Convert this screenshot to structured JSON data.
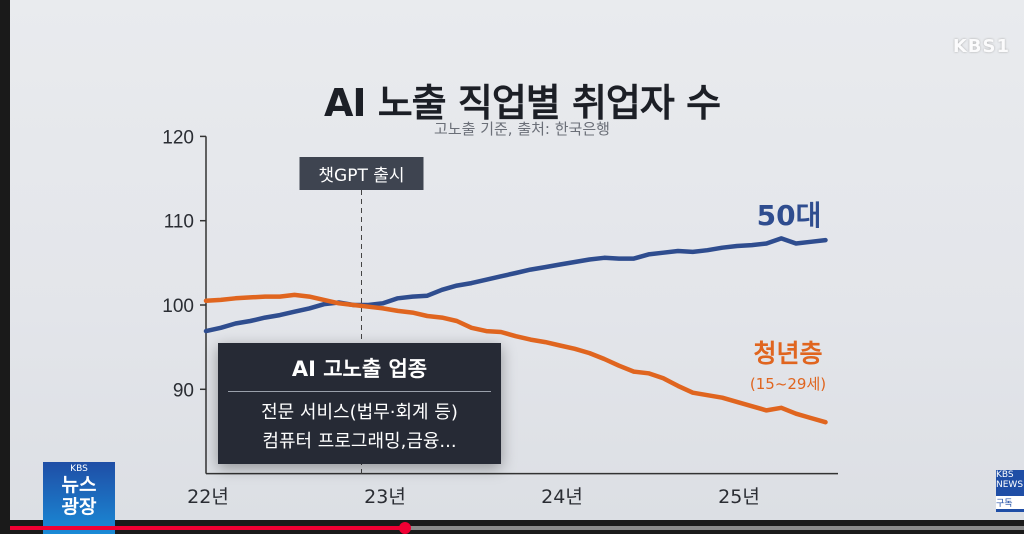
{
  "video": {
    "channel_logo": "KBS1",
    "program_badge": {
      "network": "KBS",
      "line1": "뉴스",
      "line2": "광장"
    },
    "subscribe_badge": {
      "network": "KBS NEWS",
      "label": "구독"
    },
    "progress_percent": 39
  },
  "callout": {
    "heading": "AI 고노출 업종",
    "lines": [
      "전문 서비스(법무·회계 등)",
      "컴퓨터 프로그래밍,금융..."
    ]
  },
  "chart_data": {
    "type": "line",
    "title": "AI 노출 직업별 취업자 수",
    "subtitle": "고노출 기준, 출처: 한국은행",
    "xlabel": "",
    "ylabel": "",
    "ylim": [
      80,
      120
    ],
    "yticks": [
      90,
      100,
      110,
      120
    ],
    "xtick_labels": [
      {
        "label": "22년",
        "x": "2022-01"
      },
      {
        "label": "23년",
        "x": "2023-01"
      },
      {
        "label": "24년",
        "x": "2024-01"
      },
      {
        "label": "25년",
        "x": "2025-01"
      }
    ],
    "grid": false,
    "annotation": {
      "label": "챗GPT 출시",
      "x": "2022-11",
      "style": "dashed vertical line"
    },
    "x_start": "2022-01",
    "x_frequency": "monthly",
    "series": [
      {
        "name": "50대",
        "sublabel": "",
        "color": "#2f4d8f",
        "values": [
          96.9,
          97.3,
          97.8,
          98.1,
          98.5,
          98.8,
          99.2,
          99.6,
          100.1,
          100.3,
          100.0,
          100.0,
          100.2,
          100.8,
          101.0,
          101.1,
          101.8,
          102.3,
          102.6,
          103.0,
          103.4,
          103.8,
          104.2,
          104.5,
          104.8,
          105.1,
          105.4,
          105.6,
          105.5,
          105.5,
          106.0,
          106.2,
          106.4,
          106.3,
          106.5,
          106.8,
          107.0,
          107.1,
          107.3,
          107.9,
          107.3,
          107.5,
          107.7
        ]
      },
      {
        "name": "청년층",
        "sublabel": "(15~29세)",
        "color": "#e0651f",
        "values": [
          100.5,
          100.6,
          100.8,
          100.9,
          101.0,
          101.0,
          101.2,
          101.0,
          100.6,
          100.2,
          100.0,
          99.8,
          99.6,
          99.3,
          99.1,
          98.7,
          98.5,
          98.1,
          97.3,
          96.9,
          96.8,
          96.3,
          95.9,
          95.6,
          95.2,
          94.8,
          94.3,
          93.6,
          92.8,
          92.1,
          91.9,
          91.3,
          90.4,
          89.6,
          89.3,
          89.0,
          88.5,
          88.0,
          87.5,
          87.8,
          87.1,
          86.6,
          86.1
        ]
      }
    ]
  }
}
